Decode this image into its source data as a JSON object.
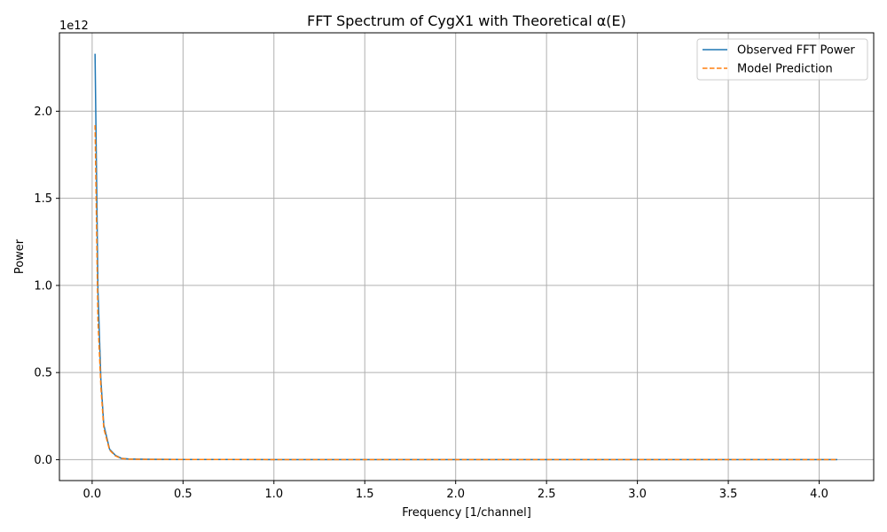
{
  "chart_data": {
    "type": "line",
    "title": "FFT Spectrum of CygX1 with Theoretical α(E)",
    "xlabel": "Frequency [1/channel]",
    "ylabel": "Power",
    "y_offset_label": "1e12",
    "xlim": [
      -0.18,
      4.3
    ],
    "ylim": [
      -0.12,
      2.45
    ],
    "x_ticks": [
      0.0,
      0.5,
      1.0,
      1.5,
      2.0,
      2.5,
      3.0,
      3.5,
      4.0
    ],
    "x_tick_labels": [
      "0.0",
      "0.5",
      "1.0",
      "1.5",
      "2.0",
      "2.5",
      "3.0",
      "3.5",
      "4.0"
    ],
    "y_ticks": [
      0.0,
      0.5,
      1.0,
      1.5,
      2.0
    ],
    "y_tick_labels": [
      "0.0",
      "0.5",
      "1.0",
      "1.5",
      "2.0"
    ],
    "grid": true,
    "legend_position": "top-right",
    "series": [
      {
        "name": "Observed FFT Power",
        "color": "#1f77b4",
        "style": "solid",
        "x": [
          0.016,
          0.032,
          0.048,
          0.064,
          0.096,
          0.128,
          0.16,
          0.2,
          0.3,
          0.5,
          1.0,
          2.0,
          3.0,
          4.1
        ],
        "y": [
          2.33,
          0.97,
          0.46,
          0.2,
          0.06,
          0.025,
          0.008,
          0.004,
          0.002,
          0.001,
          0.0005,
          0.0003,
          0.0002,
          0.0001
        ]
      },
      {
        "name": "Model Prediction",
        "color": "#ff7f0e",
        "style": "dashed",
        "x": [
          0.016,
          0.032,
          0.048,
          0.064,
          0.096,
          0.128,
          0.16,
          0.2,
          0.3,
          0.5,
          1.0,
          2.0,
          3.0,
          4.1
        ],
        "y": [
          1.92,
          0.8,
          0.42,
          0.18,
          0.055,
          0.022,
          0.007,
          0.003,
          0.0015,
          0.001,
          0.0005,
          0.0003,
          0.0002,
          0.0001
        ]
      }
    ]
  }
}
